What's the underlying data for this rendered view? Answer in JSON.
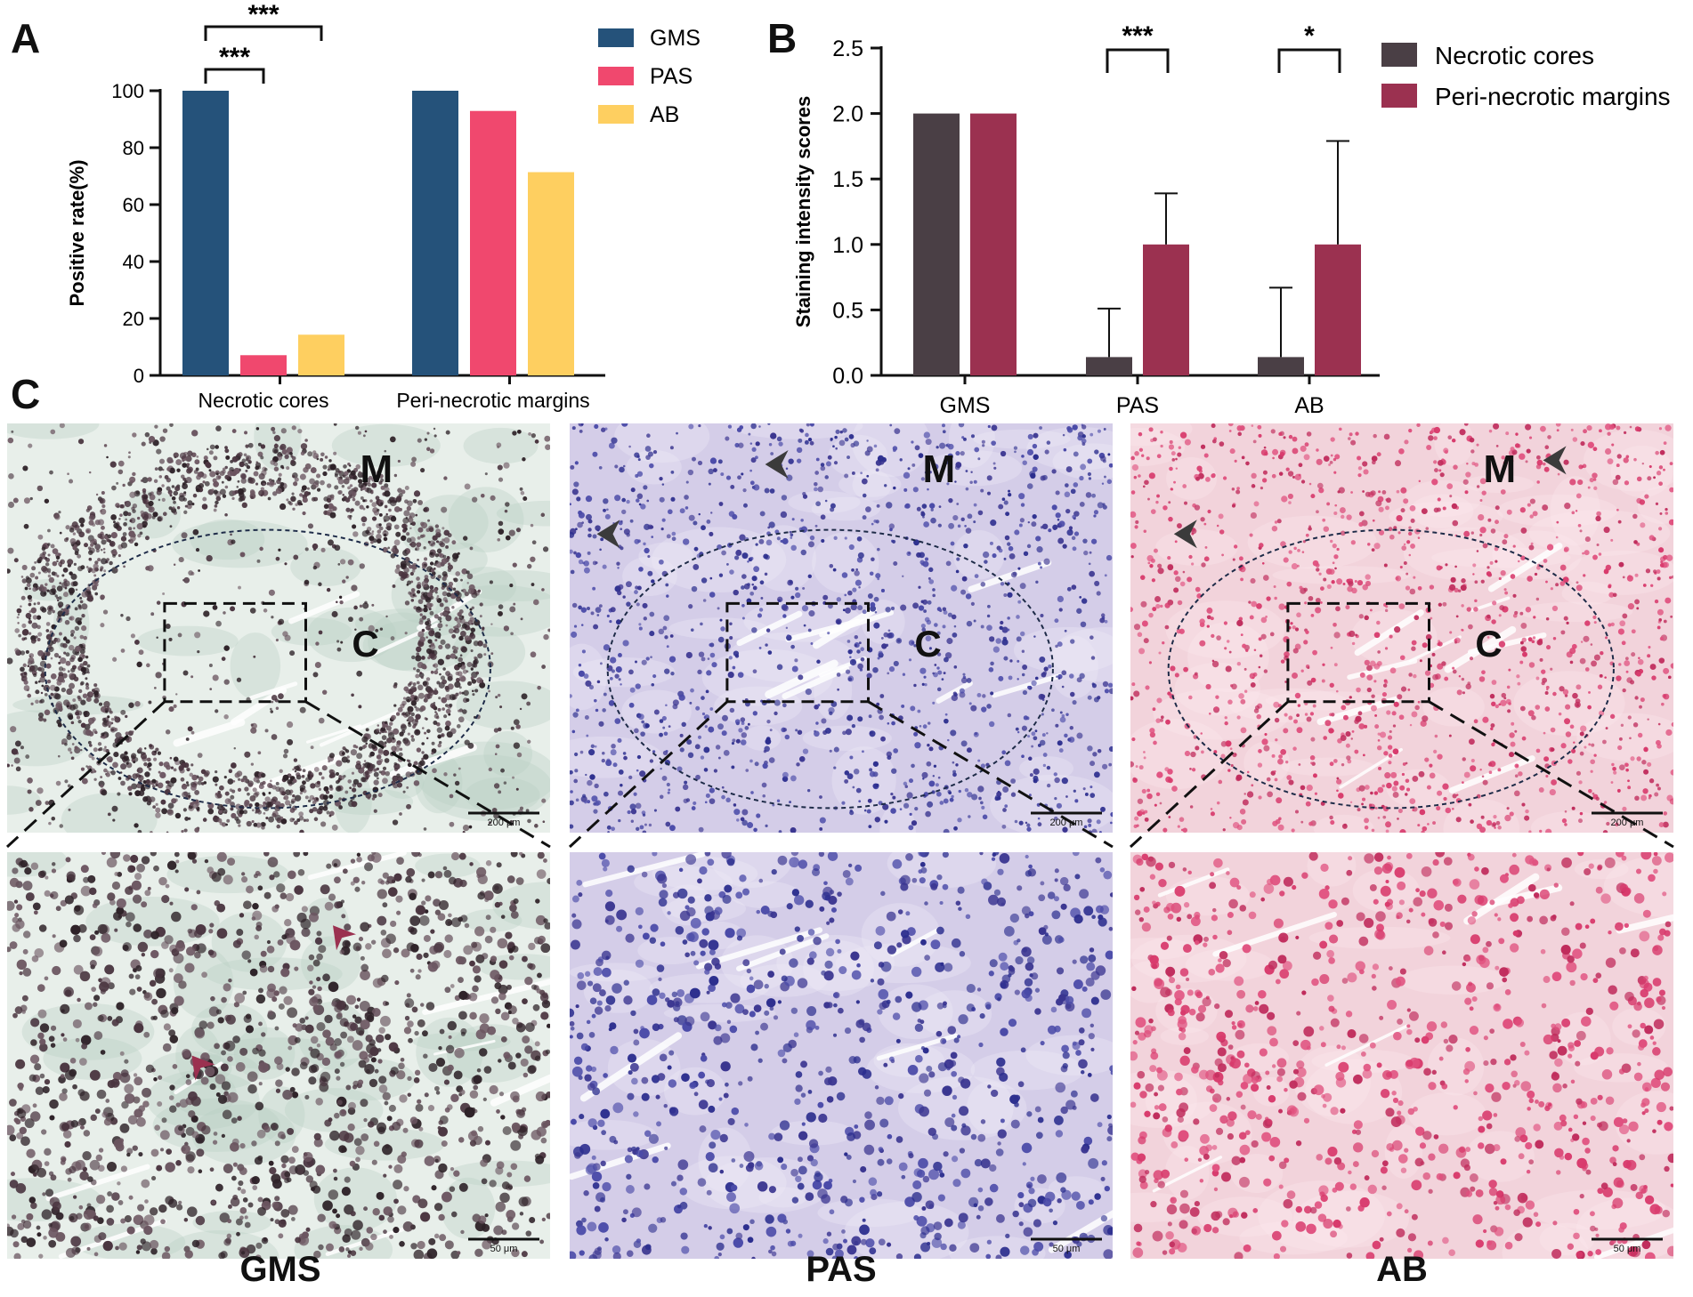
{
  "panels": {
    "a": "A",
    "b": "B",
    "c": "C"
  },
  "chart_data": [
    {
      "type": "bar",
      "ylabel": "Positive rate(%)",
      "ylim": [
        0,
        100
      ],
      "yticks": [
        "0",
        "20",
        "40",
        "60",
        "80",
        "100"
      ],
      "categories": [
        "Necrotic cores",
        "Peri-necrotic margins"
      ],
      "series": [
        {
          "name": "GMS",
          "color": "#25527a",
          "values": [
            100,
            100
          ]
        },
        {
          "name": "PAS",
          "color": "#f0486e",
          "values": [
            7.1,
            92.9
          ]
        },
        {
          "name": "AB",
          "color": "#fecf60",
          "values": [
            14.3,
            71.4
          ]
        }
      ],
      "significance": [
        "***",
        "***"
      ],
      "legend": "top-right"
    },
    {
      "type": "bar",
      "ylabel": "Staining intensity scores",
      "ylim": [
        0,
        2.5
      ],
      "yticks": [
        "0.0",
        "0.5",
        "1.0",
        "1.5",
        "2.0",
        "2.5"
      ],
      "categories": [
        "GMS",
        "PAS",
        "AB"
      ],
      "series": [
        {
          "name": "Necrotic cores",
          "color": "#4a3f45",
          "values": [
            2.0,
            0.14,
            0.14
          ],
          "error": [
            0,
            0.37,
            0.53
          ]
        },
        {
          "name": "Peri-necrotic margins",
          "color": "#9b3150",
          "values": [
            2.0,
            1.0,
            1.0
          ],
          "error": [
            0,
            0.39,
            0.79
          ]
        }
      ],
      "significance": [
        "***",
        "*"
      ],
      "legend": "top-right"
    }
  ],
  "micrographs": {
    "region_margin": "M",
    "region_core": "C",
    "scale_low": "200 μm",
    "scale_high": "50 μm",
    "stains": [
      "GMS",
      "PAS",
      "AB"
    ]
  }
}
